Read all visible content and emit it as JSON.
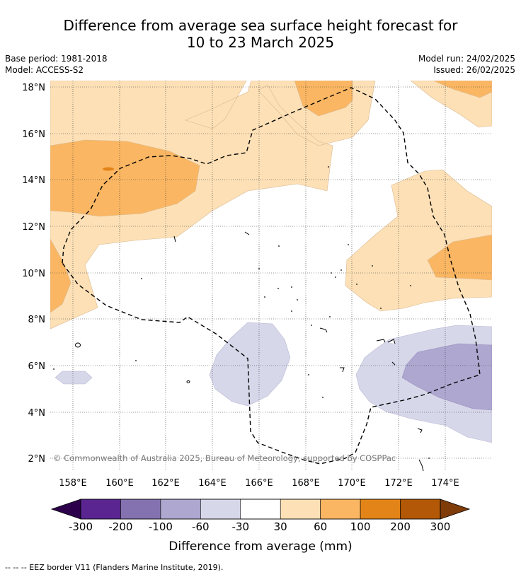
{
  "title": {
    "line1": "Difference from average sea surface height forecast for",
    "line2": "10 to 23 March 2025"
  },
  "meta": {
    "base_period": "Base period: 1981-2018",
    "model": "Model: ACCESS-S2",
    "model_run": "Model run: 24/02/2025",
    "issued": "Issued: 26/02/2025"
  },
  "map": {
    "lat_labels": [
      "18°N",
      "16°N",
      "14°N",
      "12°N",
      "10°N",
      "8°N",
      "6°N",
      "4°N",
      "2°N"
    ],
    "lon_labels": [
      "158°E",
      "160°E",
      "162°E",
      "164°E",
      "166°E",
      "168°E",
      "170°E",
      "172°E",
      "174°E"
    ],
    "copyright": "© Commonwealth of Australia 2025, Bureau of Meteorology, supported by COSPPac"
  },
  "colorbar": {
    "labels": [
      "-300",
      "-200",
      "-100",
      "-60",
      "-30",
      "30",
      "60",
      "100",
      "200",
      "300"
    ],
    "colors": [
      "#5a2590",
      "#8472b0",
      "#aea7d0",
      "#d7d7ea",
      "#ffffff",
      "#fde0b6",
      "#fab662",
      "#e38418",
      "#b35806"
    ],
    "under_color": "#2d004b",
    "over_color": "#7f3b08",
    "label": "Difference from average (mm)"
  },
  "legend_note": "--  --  -- EEZ border V11 (Flanders Marine Institute, 2019)."
}
